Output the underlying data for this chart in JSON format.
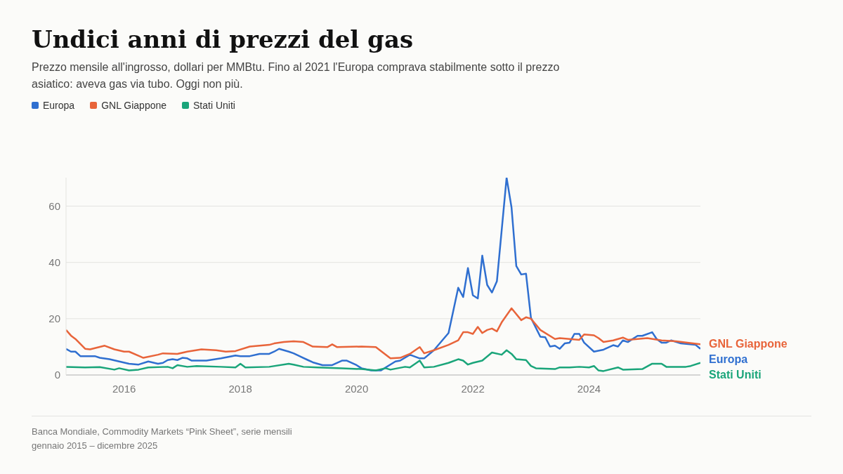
{
  "chart_data": {
    "type": "line",
    "title": "Undici anni di prezzi del gas",
    "subtitle": "Prezzo mensile all'ingrosso, dollari per MMBtu. Fino al 2021 l'Europa comprava stabilmente sotto il prezzo asiatico: aveva gas via tubo. Oggi non più.",
    "legend": "top left",
    "grid": "y",
    "xlim": [
      "2015-01",
      "2025-12"
    ],
    "xticks": [
      {
        "value": "2016",
        "label": "2016"
      },
      {
        "value": "2018",
        "label": "2018"
      },
      {
        "value": "2020",
        "label": "2020"
      },
      {
        "value": "2022",
        "label": "2022"
      },
      {
        "value": "2024",
        "label": "2024"
      }
    ],
    "ylim": [
      0,
      70.1
    ],
    "yticks": [
      0,
      20,
      40,
      60
    ],
    "annotations": [
      "Banca Mondiale, Commodity Markets “Pink Sheet”, serie mensili",
      "gennaio 2015 – dicembre 2025"
    ],
    "series": [
      {
        "name": "Europa",
        "color": "#2f6fd0",
        "x": [
          "2015-01",
          "2015-02",
          "2015-03",
          "2015-04",
          "2015-07",
          "2015-08",
          "2015-10",
          "2015-12",
          "2016-02",
          "2016-04",
          "2016-06",
          "2016-08",
          "2016-09",
          "2016-10",
          "2016-11",
          "2016-12",
          "2017-01",
          "2017-02",
          "2017-03",
          "2017-06",
          "2017-09",
          "2017-12",
          "2018-01",
          "2018-03",
          "2018-05",
          "2018-07",
          "2018-08",
          "2018-09",
          "2018-11",
          "2018-12",
          "2019-03",
          "2019-04",
          "2019-06",
          "2019-08",
          "2019-10",
          "2019-11",
          "2020-01",
          "2020-02",
          "2020-04",
          "2020-06",
          "2020-09",
          "2020-10",
          "2020-12",
          "2021-02",
          "2021-03",
          "2021-05",
          "2021-08",
          "2021-10",
          "2021-11",
          "2021-12",
          "2022-01",
          "2022-02",
          "2022-03",
          "2022-04",
          "2022-05",
          "2022-06",
          "2022-08",
          "2022-09",
          "2022-10",
          "2022-11",
          "2022-12",
          "2023-01",
          "2023-03",
          "2023-04",
          "2023-05",
          "2023-06",
          "2023-07",
          "2023-08",
          "2023-09",
          "2023-10",
          "2023-11",
          "2023-12",
          "2024-02",
          "2024-04",
          "2024-06",
          "2024-07",
          "2024-08",
          "2024-09",
          "2024-11",
          "2024-12",
          "2025-02",
          "2025-03",
          "2025-04",
          "2025-05",
          "2025-06",
          "2025-08",
          "2025-11",
          "2025-12"
        ],
        "values": [
          9.3,
          8.3,
          8.3,
          6.7,
          6.7,
          6.1,
          5.6,
          4.8,
          4.0,
          3.7,
          4.8,
          4.0,
          4.3,
          5.3,
          5.6,
          5.3,
          6.1,
          5.9,
          5.1,
          5.1,
          5.9,
          6.9,
          6.7,
          6.7,
          7.5,
          7.5,
          8.3,
          9.3,
          8.3,
          7.7,
          5.3,
          4.5,
          3.5,
          3.5,
          5.1,
          5.1,
          3.5,
          2.4,
          1.6,
          1.6,
          4.8,
          5.1,
          7.2,
          5.9,
          5.9,
          8.8,
          14.9,
          31,
          27.7,
          38,
          28.3,
          27.2,
          42.4,
          32,
          29.3,
          33.3,
          70.1,
          59.5,
          38.7,
          35.7,
          36,
          20.3,
          13.6,
          13.4,
          10.1,
          10.4,
          9.3,
          11.2,
          11.5,
          14.6,
          14.6,
          11.5,
          8.3,
          9.0,
          10.6,
          10.1,
          12.3,
          11.7,
          13.9,
          13.9,
          15.2,
          12.8,
          11.5,
          11.5,
          12.3,
          11.2,
          10.7,
          9.3
        ]
      },
      {
        "name": "GNL Giappone",
        "color": "#e8643a",
        "x": [
          "2015-01",
          "2015-02",
          "2015-03",
          "2015-05",
          "2015-06",
          "2015-09",
          "2015-11",
          "2016-01",
          "2016-02",
          "2016-05",
          "2016-08",
          "2016-09",
          "2016-12",
          "2017-02",
          "2017-05",
          "2017-08",
          "2017-10",
          "2017-12",
          "2018-03",
          "2018-07",
          "2018-08",
          "2018-10",
          "2018-12",
          "2019-02",
          "2019-04",
          "2019-07",
          "2019-08",
          "2019-09",
          "2020-02",
          "2020-05",
          "2020-08",
          "2020-10",
          "2020-12",
          "2021-02",
          "2021-03",
          "2021-05",
          "2021-08",
          "2021-10",
          "2021-11",
          "2021-12",
          "2022-01",
          "2022-02",
          "2022-03",
          "2022-04",
          "2022-05",
          "2022-06",
          "2022-07",
          "2022-09",
          "2022-11",
          "2022-12",
          "2023-01",
          "2023-03",
          "2023-06",
          "2023-07",
          "2023-11",
          "2023-12",
          "2024-02",
          "2024-03",
          "2024-04",
          "2024-06",
          "2024-08",
          "2024-09",
          "2025-01",
          "2025-04",
          "2025-07",
          "2025-12"
        ],
        "values": [
          16,
          14,
          12.8,
          9.3,
          9.1,
          10.4,
          9.1,
          8.3,
          8.3,
          6.1,
          7.2,
          7.7,
          7.5,
          8.3,
          9.1,
          8.8,
          8.3,
          8.5,
          10.1,
          10.7,
          11.2,
          11.7,
          12.0,
          11.7,
          10.1,
          9.9,
          10.9,
          9.9,
          10.1,
          9.9,
          5.9,
          6.1,
          7.5,
          9.9,
          7.7,
          8.8,
          10.7,
          12.3,
          15.2,
          15.2,
          14.6,
          17.1,
          14.9,
          16.0,
          16.5,
          15.5,
          18.7,
          23.7,
          19.5,
          20.5,
          20,
          16,
          12.8,
          13.1,
          12.5,
          14.4,
          14.1,
          13.1,
          11.7,
          12.3,
          13.3,
          12.5,
          13.1,
          12.3,
          12.0,
          10.9
        ]
      },
      {
        "name": "Stati Uniti",
        "color": "#1aa57a",
        "x": [
          "2015-01",
          "2015-05",
          "2015-08",
          "2015-11",
          "2015-12",
          "2016-02",
          "2016-04",
          "2016-06",
          "2016-10",
          "2016-11",
          "2016-12",
          "2017-02",
          "2017-04",
          "2017-09",
          "2017-12",
          "2018-01",
          "2018-02",
          "2018-07",
          "2018-11",
          "2018-12",
          "2019-02",
          "2019-05",
          "2019-10",
          "2020-02",
          "2020-05",
          "2020-07",
          "2020-08",
          "2020-11",
          "2020-12",
          "2021-02",
          "2021-03",
          "2021-05",
          "2021-08",
          "2021-10",
          "2021-11",
          "2021-12",
          "2022-01",
          "2022-03",
          "2022-05",
          "2022-07",
          "2022-08",
          "2022-09",
          "2022-10",
          "2022-12",
          "2023-01",
          "2023-02",
          "2023-06",
          "2023-07",
          "2023-09",
          "2023-11",
          "2024-01",
          "2024-02",
          "2024-03",
          "2024-04",
          "2024-07",
          "2024-08",
          "2024-12",
          "2025-02",
          "2025-04",
          "2025-05",
          "2025-09",
          "2025-10",
          "2025-12"
        ],
        "values": [
          2.9,
          2.7,
          2.8,
          1.9,
          2.4,
          1.6,
          1.9,
          2.7,
          2.9,
          2.4,
          3.5,
          2.9,
          3.2,
          2.9,
          2.7,
          4.0,
          2.7,
          2.9,
          4.0,
          3.7,
          2.9,
          2.7,
          2.4,
          2.1,
          1.6,
          2.4,
          1.9,
          2.9,
          2.7,
          5.1,
          2.7,
          2.9,
          4.3,
          5.6,
          5.1,
          3.7,
          4.3,
          5.1,
          8.0,
          7.2,
          8.8,
          7.5,
          5.6,
          5.3,
          3.2,
          2.4,
          2.1,
          2.7,
          2.7,
          2.9,
          2.7,
          3.2,
          1.6,
          1.4,
          2.7,
          1.9,
          2.1,
          4.0,
          4.0,
          2.9,
          2.9,
          3.2,
          4.3
        ]
      }
    ]
  }
}
